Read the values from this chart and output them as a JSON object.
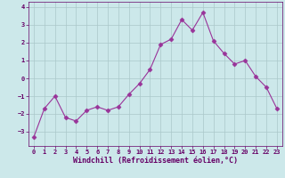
{
  "x": [
    0,
    1,
    2,
    3,
    4,
    5,
    6,
    7,
    8,
    9,
    10,
    11,
    12,
    13,
    14,
    15,
    16,
    17,
    18,
    19,
    20,
    21,
    22,
    23
  ],
  "y": [
    -3.3,
    -1.7,
    -1.0,
    -2.2,
    -2.4,
    -1.8,
    -1.6,
    -1.8,
    -1.6,
    -0.9,
    -0.3,
    0.5,
    1.9,
    2.2,
    3.3,
    2.7,
    3.7,
    2.1,
    1.4,
    0.8,
    1.0,
    0.1,
    -0.5,
    -1.7
  ],
  "line_color": "#993399",
  "marker": "D",
  "marker_size": 2.5,
  "bg_color": "#cce8ea",
  "grid_color": "#aac8ca",
  "xlabel": "Windchill (Refroidissement éolien,°C)",
  "ylim": [
    -3.8,
    4.3
  ],
  "xlim": [
    -0.5,
    23.5
  ],
  "yticks": [
    -3,
    -2,
    -1,
    0,
    1,
    2,
    3,
    4
  ],
  "xticks": [
    0,
    1,
    2,
    3,
    4,
    5,
    6,
    7,
    8,
    9,
    10,
    11,
    12,
    13,
    14,
    15,
    16,
    17,
    18,
    19,
    20,
    21,
    22,
    23
  ],
  "tick_color": "#660066",
  "label_color": "#660066",
  "tick_fontsize": 5.0,
  "xlabel_fontsize": 6.0,
  "spine_color": "#660066"
}
